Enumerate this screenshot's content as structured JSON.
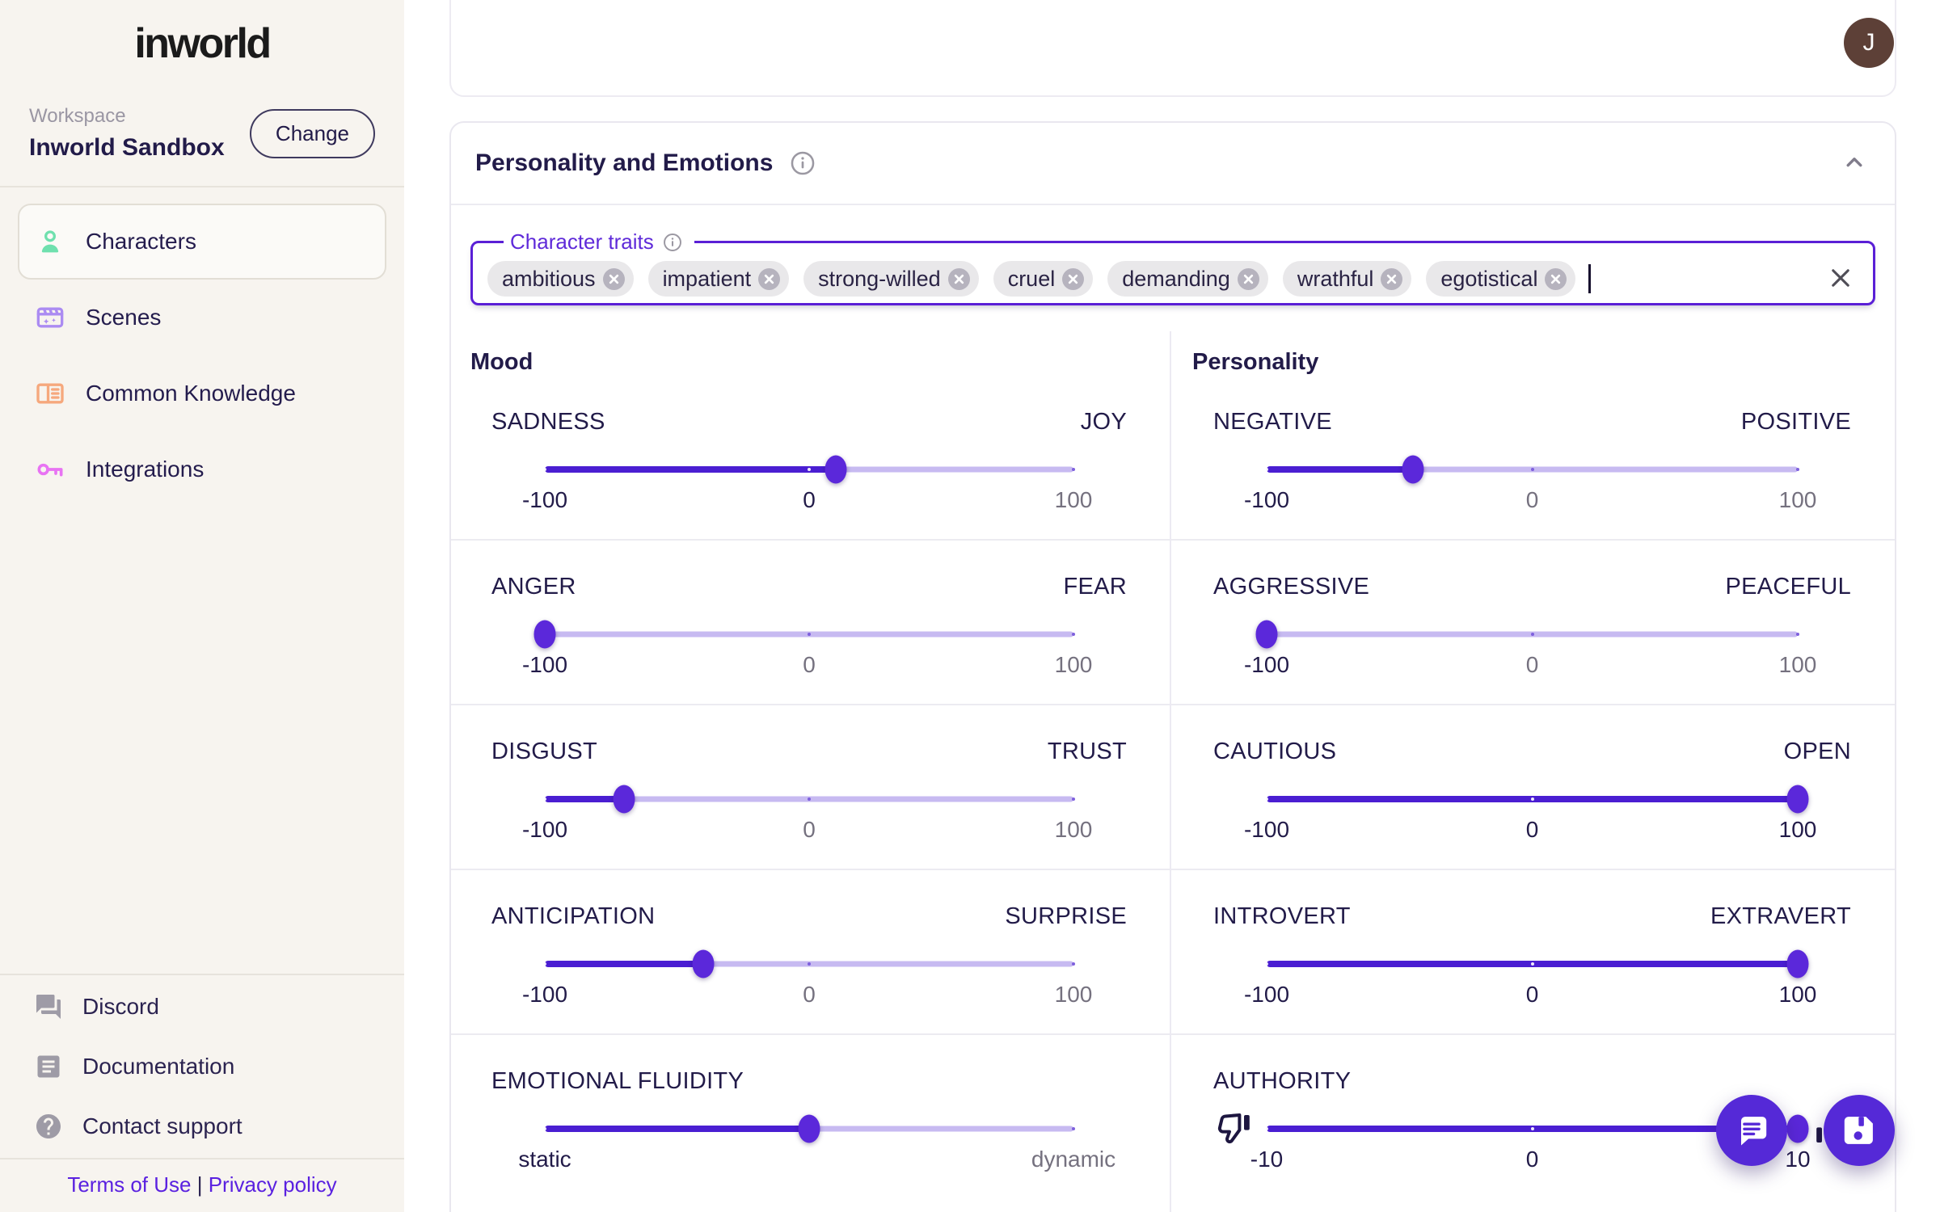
{
  "sidebar": {
    "logo_text": "inworld",
    "workspace_label": "Workspace",
    "workspace_name": "Inworld Sandbox",
    "change_button_label": "Change",
    "nav_items": [
      {
        "label": "Characters",
        "icon": "person-icon",
        "color": "#6fe0ae",
        "selected": true
      },
      {
        "label": "Scenes",
        "icon": "clapperboard-icon",
        "color": "#ab8bf2",
        "selected": false
      },
      {
        "label": "Common Knowledge",
        "icon": "book-icon",
        "color": "#f6a87d",
        "selected": false
      },
      {
        "label": "Integrations",
        "icon": "key-icon",
        "color": "#e873f3",
        "selected": false
      }
    ],
    "footer_items": [
      {
        "label": "Discord",
        "icon": "chat-bubbles-icon"
      },
      {
        "label": "Documentation",
        "icon": "document-icon"
      },
      {
        "label": "Contact support",
        "icon": "question-circle-icon"
      }
    ],
    "legal": {
      "terms_label": "Terms of Use",
      "separator": "|",
      "privacy_label": "Privacy policy"
    }
  },
  "topbar": {
    "avatar_initial": "J"
  },
  "panel": {
    "title": "Personality and Emotions",
    "traits_field": {
      "label": "Character traits",
      "chips": [
        "ambitious",
        "impatient",
        "strong-willed",
        "cruel",
        "demanding",
        "wrathful",
        "egotistical"
      ]
    },
    "columns": [
      {
        "heading": "Mood",
        "sliders": [
          {
            "label_left": "SADNESS",
            "label_right": "JOY",
            "min": -100,
            "max": 100,
            "value": 10,
            "marks": [
              {
                "value": -100,
                "label": "-100"
              },
              {
                "value": 0,
                "label": "0"
              },
              {
                "value": 100,
                "label": "100"
              }
            ]
          },
          {
            "label_left": "ANGER",
            "label_right": "FEAR",
            "min": -100,
            "max": 100,
            "value": -100,
            "marks": [
              {
                "value": -100,
                "label": "-100"
              },
              {
                "value": 0,
                "label": "0"
              },
              {
                "value": 100,
                "label": "100"
              }
            ]
          },
          {
            "label_left": "DISGUST",
            "label_right": "TRUST",
            "min": -100,
            "max": 100,
            "value": -70,
            "marks": [
              {
                "value": -100,
                "label": "-100"
              },
              {
                "value": 0,
                "label": "0"
              },
              {
                "value": 100,
                "label": "100"
              }
            ]
          },
          {
            "label_left": "ANTICIPATION",
            "label_right": "SURPRISE",
            "min": -100,
            "max": 100,
            "value": -40,
            "marks": [
              {
                "value": -100,
                "label": "-100"
              },
              {
                "value": 0,
                "label": "0"
              },
              {
                "value": 100,
                "label": "100"
              }
            ]
          },
          {
            "title": "EMOTIONAL FLUIDITY",
            "min": -100,
            "max": 100,
            "value": 0,
            "marks": [
              {
                "value": -100,
                "label": "static"
              },
              {
                "value": 100,
                "label": "dynamic"
              }
            ]
          }
        ]
      },
      {
        "heading": "Personality",
        "sliders": [
          {
            "label_left": "NEGATIVE",
            "label_right": "POSITIVE",
            "min": -100,
            "max": 100,
            "value": -45,
            "marks": [
              {
                "value": -100,
                "label": "-100"
              },
              {
                "value": 0,
                "label": "0"
              },
              {
                "value": 100,
                "label": "100"
              }
            ]
          },
          {
            "label_left": "AGGRESSIVE",
            "label_right": "PEACEFUL",
            "min": -100,
            "max": 100,
            "value": -100,
            "marks": [
              {
                "value": -100,
                "label": "-100"
              },
              {
                "value": 0,
                "label": "0"
              },
              {
                "value": 100,
                "label": "100"
              }
            ]
          },
          {
            "label_left": "CAUTIOUS",
            "label_right": "OPEN",
            "min": -100,
            "max": 100,
            "value": 100,
            "marks": [
              {
                "value": -100,
                "label": "-100"
              },
              {
                "value": 0,
                "label": "0"
              },
              {
                "value": 100,
                "label": "100"
              }
            ]
          },
          {
            "label_left": "INTROVERT",
            "label_right": "EXTRAVERT",
            "min": -100,
            "max": 100,
            "value": 100,
            "marks": [
              {
                "value": -100,
                "label": "-100"
              },
              {
                "value": 0,
                "label": "0"
              },
              {
                "value": 100,
                "label": "100"
              }
            ]
          },
          {
            "title": "AUTHORITY",
            "min": -10,
            "max": 10,
            "value": 10,
            "flank_icons": true,
            "marks": [
              {
                "value": -10,
                "label": "-10"
              },
              {
                "value": 0,
                "label": "0"
              },
              {
                "value": 10,
                "label": "10"
              }
            ]
          }
        ]
      }
    ]
  },
  "fabs": {
    "chat_icon": "chat-bubble-icon",
    "save_icon": "floppy-disk-icon"
  },
  "colors": {
    "accent": "#5a1fd6",
    "slider_fill": "#4a1ed2",
    "slider_rail": "#c7baf1",
    "slider_thumb": "#5b28da",
    "fab": "#5529d7",
    "link": "#5a21e0",
    "avatar_bg": "#5d4037",
    "sidebar_bg": "#f7f4ef",
    "dark_text": "#221b49",
    "gray_text": "#75717f"
  }
}
